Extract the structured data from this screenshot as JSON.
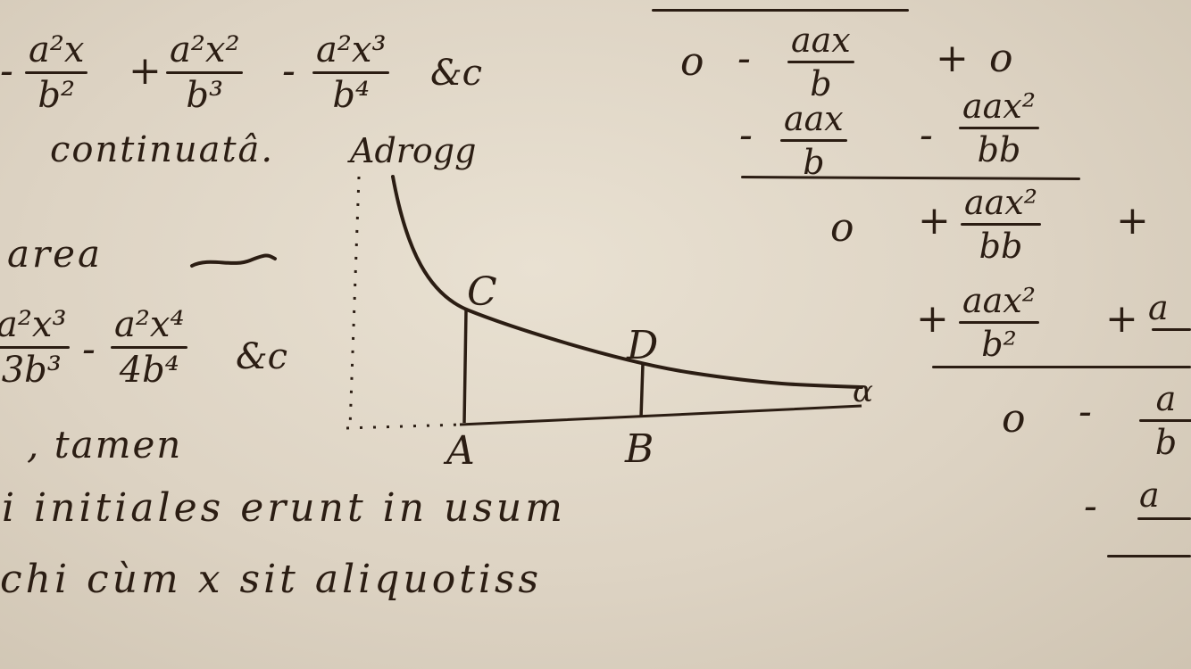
{
  "left_series_top": {
    "lead_sign": "-",
    "f1_num": "a²x",
    "f1_den": "b²",
    "op2": "+",
    "f2_num": "a²x²",
    "f2_den": "b³",
    "op3": "-",
    "f3_num": "a²x³",
    "f3_den": "b⁴",
    "etc": "&c"
  },
  "line_continuata": "continuatâ.",
  "word_adrogg": "Adrogg",
  "word_area": "area",
  "left_series_area": {
    "f1_num": "a²x³",
    "f1_den": "3b³",
    "op2": "-",
    "f2_num": "a²x⁴",
    "f2_den": "4b⁴",
    "etc": "&c"
  },
  "line_tamen": ", tamen",
  "line_initiales": "i initiales erunt in usum",
  "line_cum": "chi cùm x sit aliquotiss",
  "figure": {
    "label_C": "C",
    "label_D": "D",
    "label_A": "A",
    "label_B": "B",
    "label_alpha": "α"
  },
  "division": {
    "row1": {
      "zero": "o",
      "op1": "-",
      "f_num": "aax",
      "f_den": "b",
      "op2": "+",
      "tail": "o"
    },
    "row2": {
      "op1": "-",
      "f1_num": "aax",
      "f1_den": "b",
      "op2": "-",
      "f2_num": "aax²",
      "f2_den": "bb"
    },
    "row3": {
      "zero": "o",
      "op1": "+",
      "f_num": "aax²",
      "f_den": "bb",
      "op2": "+"
    },
    "row4": {
      "op1": "+",
      "f1_num": "aax²",
      "f1_den": "b²",
      "op2": "+",
      "f2_num": "a"
    },
    "row5": {
      "zero": "o",
      "op1": "-",
      "f_num": "a",
      "f_den": "b"
    },
    "row6": {
      "op1": "-",
      "f_num": "a"
    }
  }
}
